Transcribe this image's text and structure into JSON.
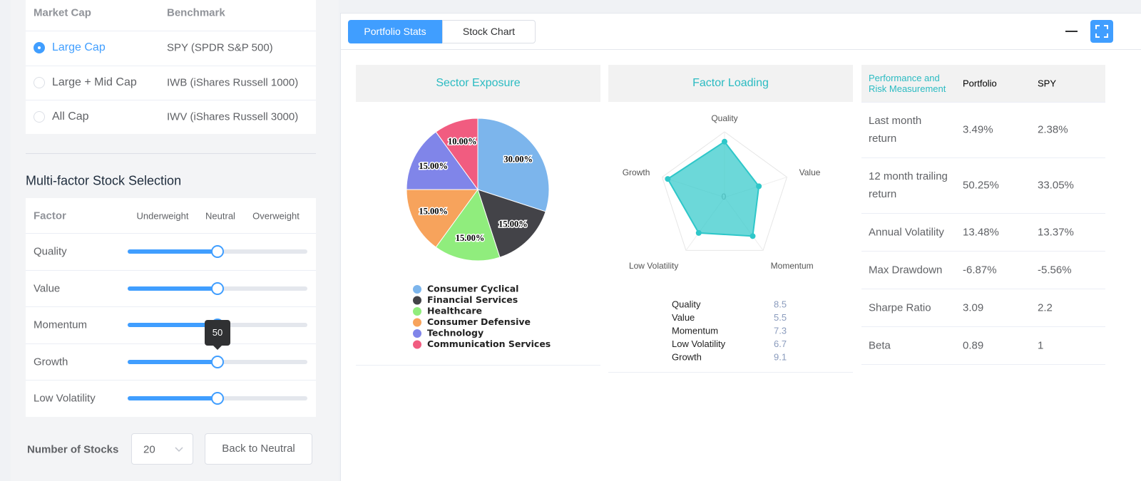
{
  "market_cap": {
    "headers": [
      "Market Cap",
      "Benchmark"
    ],
    "rows": [
      [
        "Large Cap",
        "SPY (SPDR S&P 500)"
      ],
      [
        "Large + Mid Cap",
        "IWB (iShares Russell 1000)"
      ],
      [
        "All Cap",
        "IWV (iShares Russell 3000)"
      ]
    ],
    "selected": 0
  },
  "factor_selection": {
    "title": "Multi-factor Stock Selection",
    "headers": [
      "Factor",
      "Underweight",
      "Neutral",
      "Overweight"
    ],
    "rows": [
      {
        "label": "Quality",
        "value": 50
      },
      {
        "label": "Value",
        "value": 50
      },
      {
        "label": "Momentum",
        "value": 50
      },
      {
        "label": "Growth",
        "value": 50
      },
      {
        "label": "Low Volatility",
        "value": 50
      }
    ],
    "slider_lim": [
      0,
      100
    ],
    "tooltip_row": 3
  },
  "controls": {
    "label": "Number of Stocks",
    "select": 20,
    "button": "Back to Neutral"
  },
  "tabs": {
    "items": [
      "Portfolio Stats",
      "Stock Chart"
    ],
    "active": 0
  },
  "chart_data": [
    {
      "type": "pie",
      "title": "Sector Exposure",
      "categories": [
        "Consumer Cyclical",
        "Financial Services",
        "Healthcare",
        "Consumer Defensive",
        "Technology",
        "Communication Services"
      ],
      "values": [
        30,
        15,
        15,
        15,
        15,
        10
      ],
      "value_labels": [
        "30.00%",
        "15.00%",
        "15.00%",
        "15.00%",
        "15.00%",
        "10.00%"
      ],
      "colors": [
        "#7cb5ec",
        "#434348",
        "#90ed7d",
        "#f7a35c",
        "#8085e9",
        "#f15c80"
      ]
    },
    {
      "type": "radar",
      "title": "Factor Loading",
      "categories": [
        "Quality",
        "Value",
        "Momentum",
        "Low Volatility",
        "Growth"
      ],
      "values": [
        8.5,
        5.5,
        7.3,
        6.7,
        9.1
      ],
      "rlim": [
        0,
        10
      ],
      "rticks": [
        0
      ],
      "color": "#2ec7c9"
    }
  ],
  "performance_table": {
    "headers": [
      "Performance and Risk Measurement",
      "Portfolio",
      "SPY"
    ],
    "rows": [
      [
        "Last month return",
        "3.49%",
        "2.38%"
      ],
      [
        "12 month trailing return",
        "50.25%",
        "33.05%"
      ],
      [
        "Annual Volatility",
        "13.48%",
        "13.37%"
      ],
      [
        "Max Drawdown",
        "-6.87%",
        "-5.56%"
      ],
      [
        "Sharpe Ratio",
        "3.09",
        "2.2"
      ],
      [
        "Beta",
        "0.89",
        "1"
      ]
    ]
  }
}
